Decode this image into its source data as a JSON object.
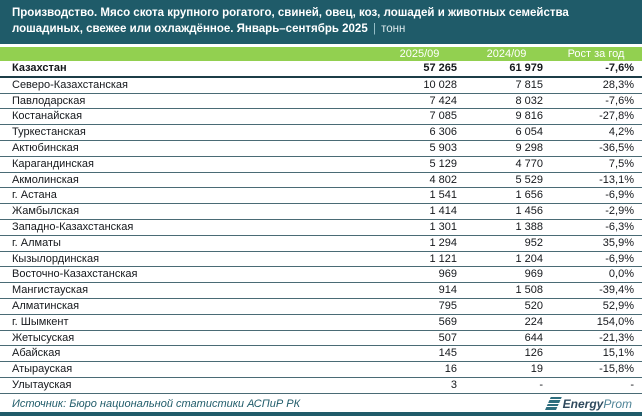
{
  "title": {
    "main": "Производство. Мясо скота крупного рогатого, свиней, овец, коз, лошадей и животных семейства лошадиных, свежее или охлаждённое. Январь–сентябрь 2025",
    "separator": "|",
    "unit": "тонн"
  },
  "table": {
    "columns": [
      "2025/09",
      "2024/09",
      "Рост за год"
    ],
    "rows": [
      {
        "region": "Казахстан",
        "v2025": "57 265",
        "v2024": "61 979",
        "growth": "-7,6%",
        "bold": true
      },
      {
        "region": "Северо-Казахстанская",
        "v2025": "10 028",
        "v2024": "7 815",
        "growth": "28,3%"
      },
      {
        "region": "Павлодарская",
        "v2025": "7 424",
        "v2024": "8 032",
        "growth": "-7,6%"
      },
      {
        "region": "Костанайская",
        "v2025": "7 085",
        "v2024": "9 816",
        "growth": "-27,8%"
      },
      {
        "region": "Туркестанская",
        "v2025": "6 306",
        "v2024": "6 054",
        "growth": "4,2%"
      },
      {
        "region": "Актюбинская",
        "v2025": "5 903",
        "v2024": "9 298",
        "growth": "-36,5%"
      },
      {
        "region": "Карагандинская",
        "v2025": "5 129",
        "v2024": "4 770",
        "growth": "7,5%"
      },
      {
        "region": "Акмолинская",
        "v2025": "4 802",
        "v2024": "5 529",
        "growth": "-13,1%"
      },
      {
        "region": "г. Астана",
        "v2025": "1 541",
        "v2024": "1 656",
        "growth": "-6,9%"
      },
      {
        "region": "Жамбылская",
        "v2025": "1 414",
        "v2024": "1 456",
        "growth": "-2,9%"
      },
      {
        "region": "Западно-Казахстанская",
        "v2025": "1 301",
        "v2024": "1 388",
        "growth": "-6,3%"
      },
      {
        "region": "г. Алматы",
        "v2025": "1 294",
        "v2024": "952",
        "growth": "35,9%"
      },
      {
        "region": "Кызылординская",
        "v2025": "1 121",
        "v2024": "1 204",
        "growth": "-6,9%"
      },
      {
        "region": "Восточно-Казахстанская",
        "v2025": "969",
        "v2024": "969",
        "growth": "0,0%"
      },
      {
        "region": "Мангистауская",
        "v2025": "914",
        "v2024": "1 508",
        "growth": "-39,4%"
      },
      {
        "region": "Алматинская",
        "v2025": "795",
        "v2024": "520",
        "growth": "52,9%"
      },
      {
        "region": "г. Шымкент",
        "v2025": "569",
        "v2024": "224",
        "growth": "154,0%"
      },
      {
        "region": "Жетысуская",
        "v2025": "507",
        "v2024": "644",
        "growth": "-21,3%"
      },
      {
        "region": "Абайская",
        "v2025": "145",
        "v2024": "126",
        "growth": "15,1%"
      },
      {
        "region": "Атырауская",
        "v2025": "16",
        "v2024": "19",
        "growth": "-15,8%"
      },
      {
        "region": "Улытауская",
        "v2025": "3",
        "v2024": "-",
        "growth": "-"
      }
    ]
  },
  "footer": {
    "source": "Источник: Бюро национальной статистики АСПиР РК",
    "logo_bold": "Energy",
    "logo_light": "Prom"
  },
  "colors": {
    "title_bg": "#1F5B69",
    "header_bg": "#92D050",
    "row_border": "#4A6B75",
    "accent_teal": "#1F5B69"
  }
}
